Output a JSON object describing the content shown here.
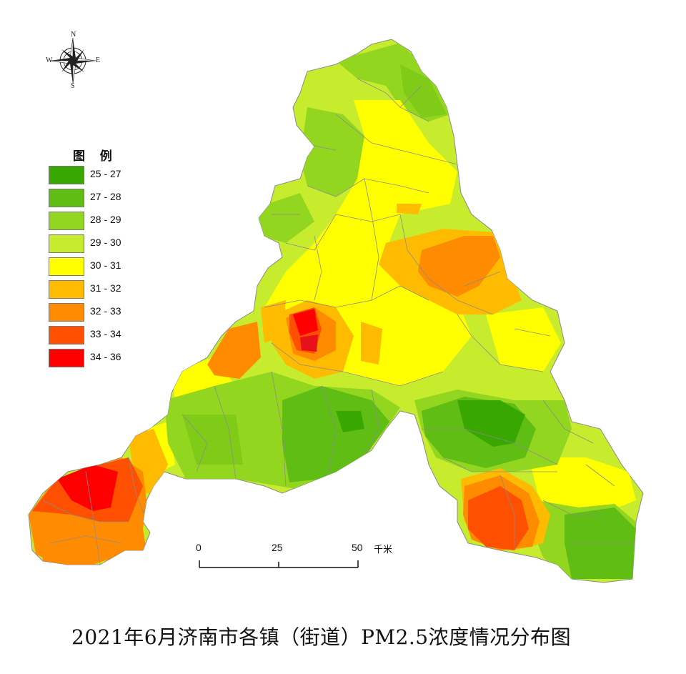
{
  "title": "2021年6月济南市各镇（街道）PM2.5浓度情况分布图",
  "compass": {
    "north": "N",
    "south": "S",
    "east": "E",
    "west": "W"
  },
  "legend": {
    "title": "图 例",
    "items": [
      {
        "label": "25 - 27",
        "color": "#38a800"
      },
      {
        "label": "27 - 28",
        "color": "#5fbd14"
      },
      {
        "label": "28 - 29",
        "color": "#93d61f"
      },
      {
        "label": "29 - 30",
        "color": "#c7ec2e"
      },
      {
        "label": "30 - 31",
        "color": "#ffff00"
      },
      {
        "label": "31 - 32",
        "color": "#ffbb00"
      },
      {
        "label": "32 - 33",
        "color": "#ff8b00"
      },
      {
        "label": "33 - 34",
        "color": "#ff4f00"
      },
      {
        "label": "34 - 36",
        "color": "#ff0000"
      }
    ]
  },
  "scale": {
    "ticks": [
      "0",
      "25",
      "50"
    ],
    "unit": "千米"
  }
}
